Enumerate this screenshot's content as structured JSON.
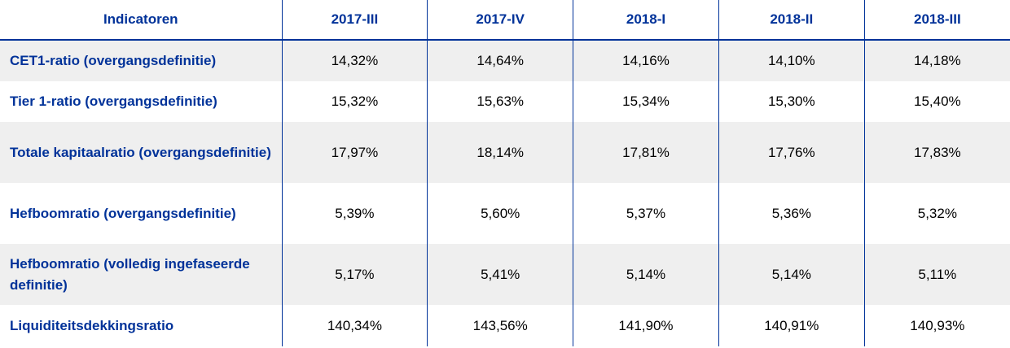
{
  "table": {
    "headers": [
      "Indicatoren",
      "2017-III",
      "2017-IV",
      "2018-I",
      "2018-II",
      "2018-III"
    ],
    "rows": [
      {
        "label": "CET1-ratio (overgangsdefinitie)",
        "values": [
          "14,32%",
          "14,64%",
          "14,16%",
          "14,10%",
          "14,18%"
        ]
      },
      {
        "label": "Tier 1-ratio (overgangsdefinitie)",
        "values": [
          "15,32%",
          "15,63%",
          "15,34%",
          "15,30%",
          "15,40%"
        ]
      },
      {
        "label": "Totale kapitaalratio (overgangsdefinitie)",
        "values": [
          "17,97%",
          "18,14%",
          "17,81%",
          "17,76%",
          "17,83%"
        ]
      },
      {
        "label": "Hefboomratio (overgangsdefinitie)",
        "values": [
          "5,39%",
          "5,60%",
          "5,37%",
          "5,36%",
          "5,32%"
        ]
      },
      {
        "label": "Hefboomratio (volledig ingefaseerde definitie)",
        "values": [
          "5,17%",
          "5,41%",
          "5,14%",
          "5,14%",
          "5,11%"
        ]
      },
      {
        "label": "Liquiditeitsdekkingsratio",
        "values": [
          "140,34%",
          "143,56%",
          "141,90%",
          "140,91%",
          "140,93%"
        ]
      }
    ]
  },
  "colors": {
    "header_text": "#003299",
    "rule": "#003299",
    "row_shade": "#efefef"
  }
}
